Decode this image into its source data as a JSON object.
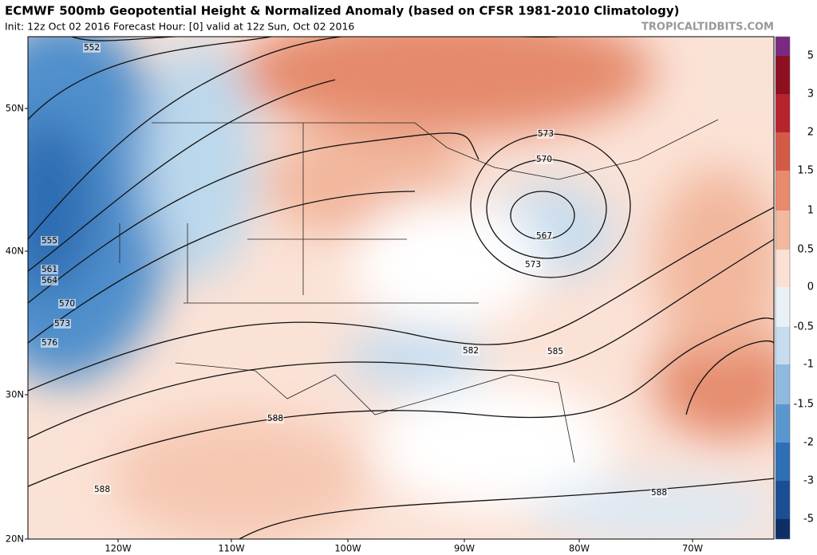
{
  "header": {
    "title": "ECMWF 500mb Geopotential Height & Normalized Anomaly (based on CFSR 1981-2010 Climatology)",
    "subtitle": "Init: 12z Oct 02 2016   Forecast Hour: [0]   valid at 12z Sun, Oct 02 2016",
    "watermark": "TROPICALTIDBITS.COM"
  },
  "map": {
    "lat_labels": [
      "50N",
      "40N",
      "30N",
      "20N"
    ],
    "lon_labels": [
      "120W",
      "110W",
      "100W",
      "90W",
      "80W",
      "70W"
    ],
    "contour_labels": [
      552,
      555,
      561,
      564,
      570,
      573,
      576,
      573,
      570,
      567,
      573,
      582,
      585,
      588,
      588,
      588
    ]
  },
  "colorbar": {
    "labels": [
      5,
      3,
      2,
      1.5,
      1,
      0.5,
      0,
      -0.5,
      -1,
      -1.5,
      -2,
      -3,
      -5
    ],
    "colors": [
      "#7a2a82",
      "#8e1020",
      "#b8242c",
      "#d45a48",
      "#e88a6c",
      "#f3b89e",
      "#fbe0d3",
      "#e9f1f8",
      "#c6dcee",
      "#8fbadf",
      "#5b97cf",
      "#2f6fb5",
      "#1b4e92",
      "#0e2f66"
    ]
  }
}
